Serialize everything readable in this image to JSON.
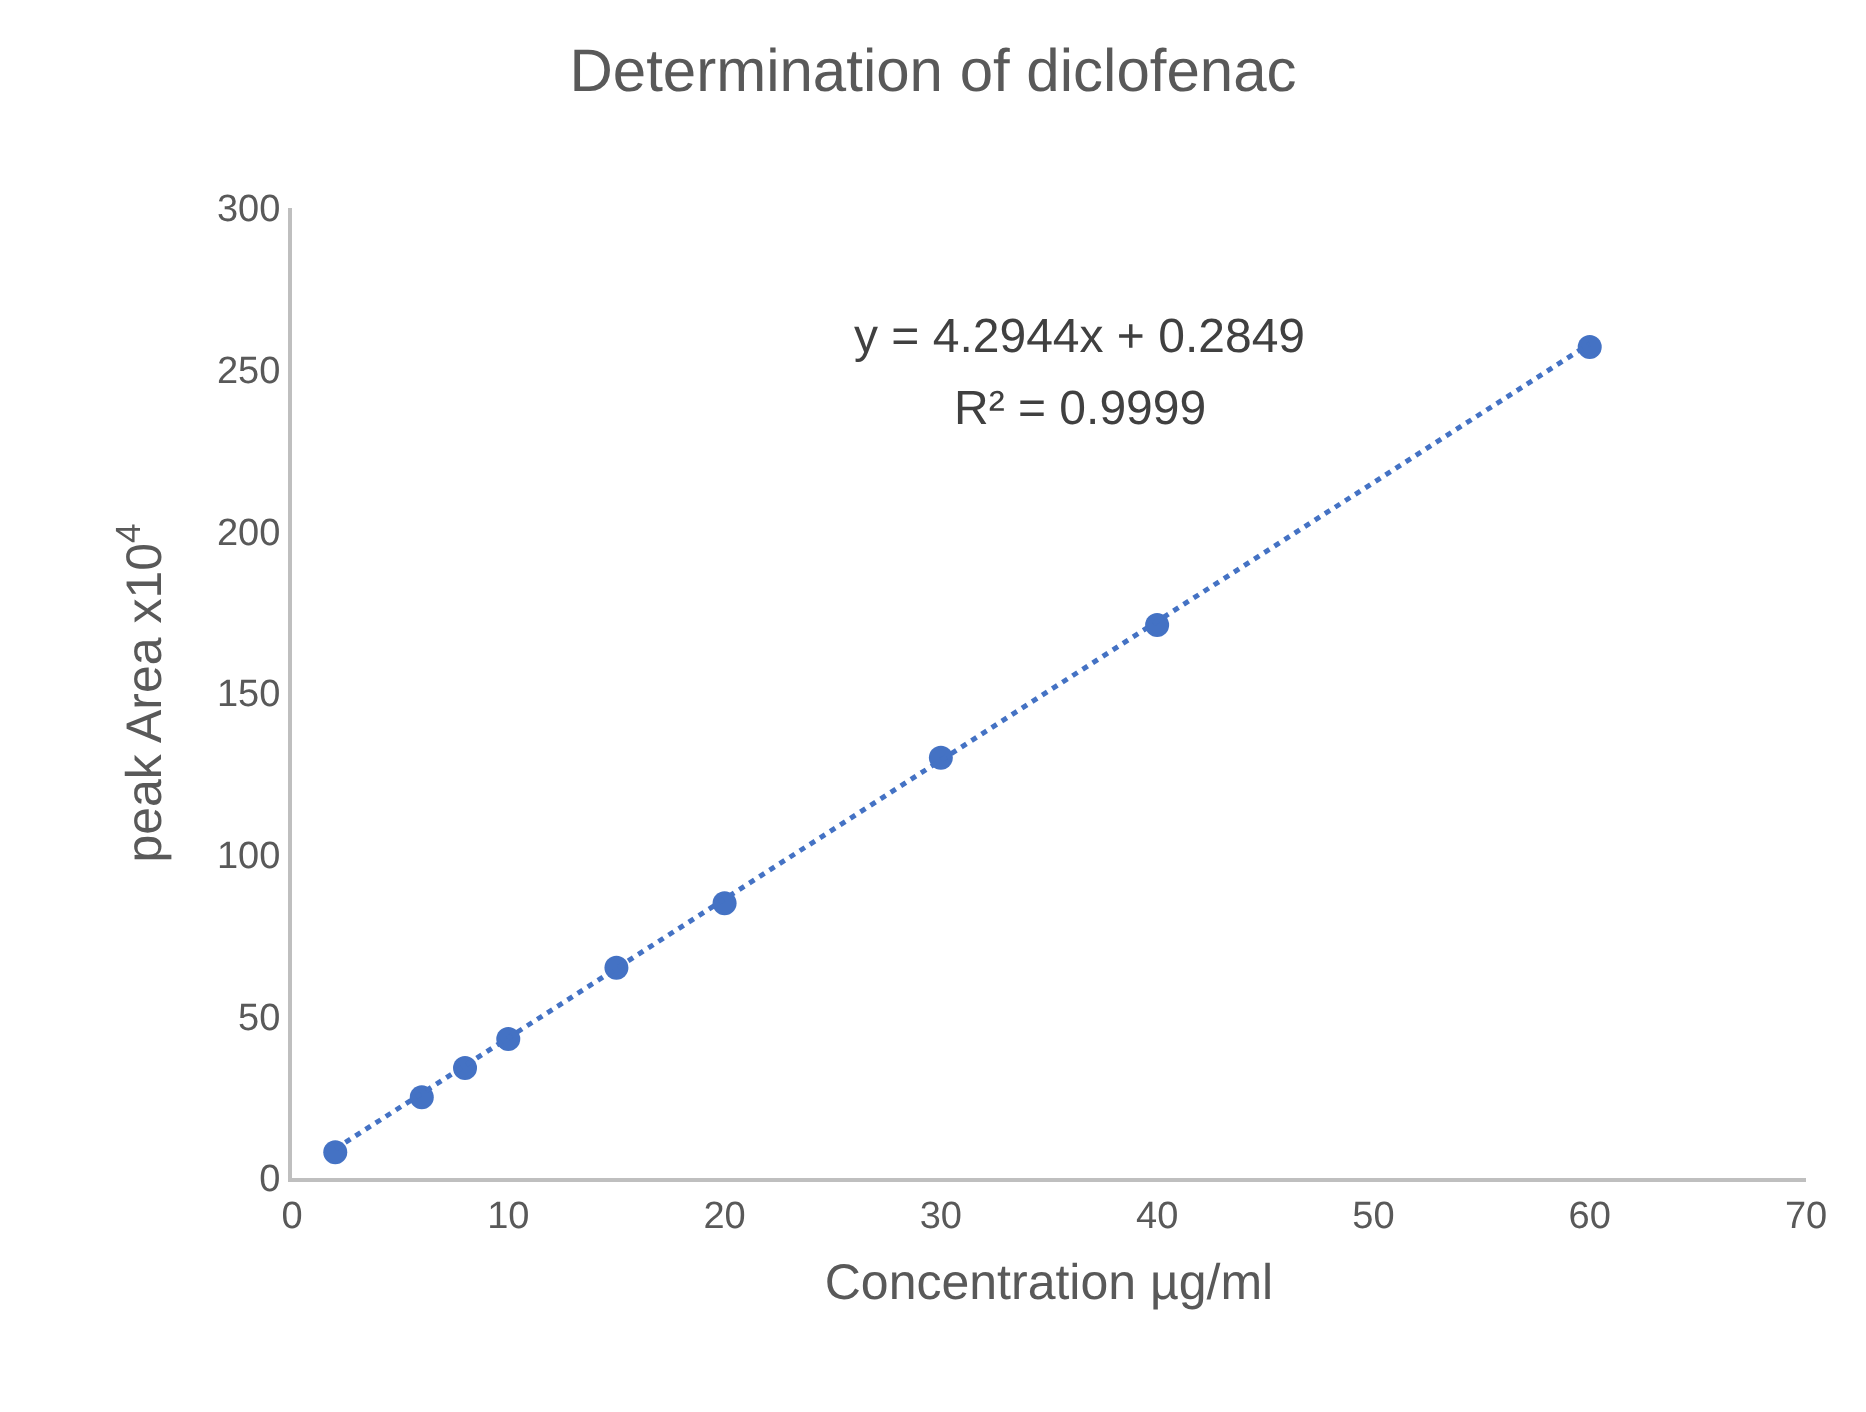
{
  "chart_data": {
    "type": "scatter",
    "title": "Determination of diclofenac",
    "xlabel": "Concentration µg/ml",
    "ylabel": "peak Area x10$^{4}$",
    "xlim": [
      0,
      70
    ],
    "xticks": [
      0,
      10,
      20,
      30,
      40,
      50,
      60,
      70
    ],
    "ylim": [
      0,
      300
    ],
    "yticks": [
      0,
      50,
      100,
      150,
      200,
      250,
      300
    ],
    "annotations": [
      "y = 4.2944x + 0.2849",
      "R² = 0.9999"
    ],
    "series": [
      {
        "color": "#4472c4",
        "marker": "circle",
        "x": [
          2,
          6,
          8,
          10,
          15,
          20,
          30,
          40,
          60
        ],
        "values": [
          8,
          25,
          34,
          43,
          65,
          85,
          130,
          171,
          257
        ]
      },
      {
        "type": "line",
        "color": "#4472c4",
        "marker": "none",
        "line_style": "dotted",
        "x": [
          2,
          60
        ],
        "values": [
          9,
          258
        ]
      }
    ]
  }
}
